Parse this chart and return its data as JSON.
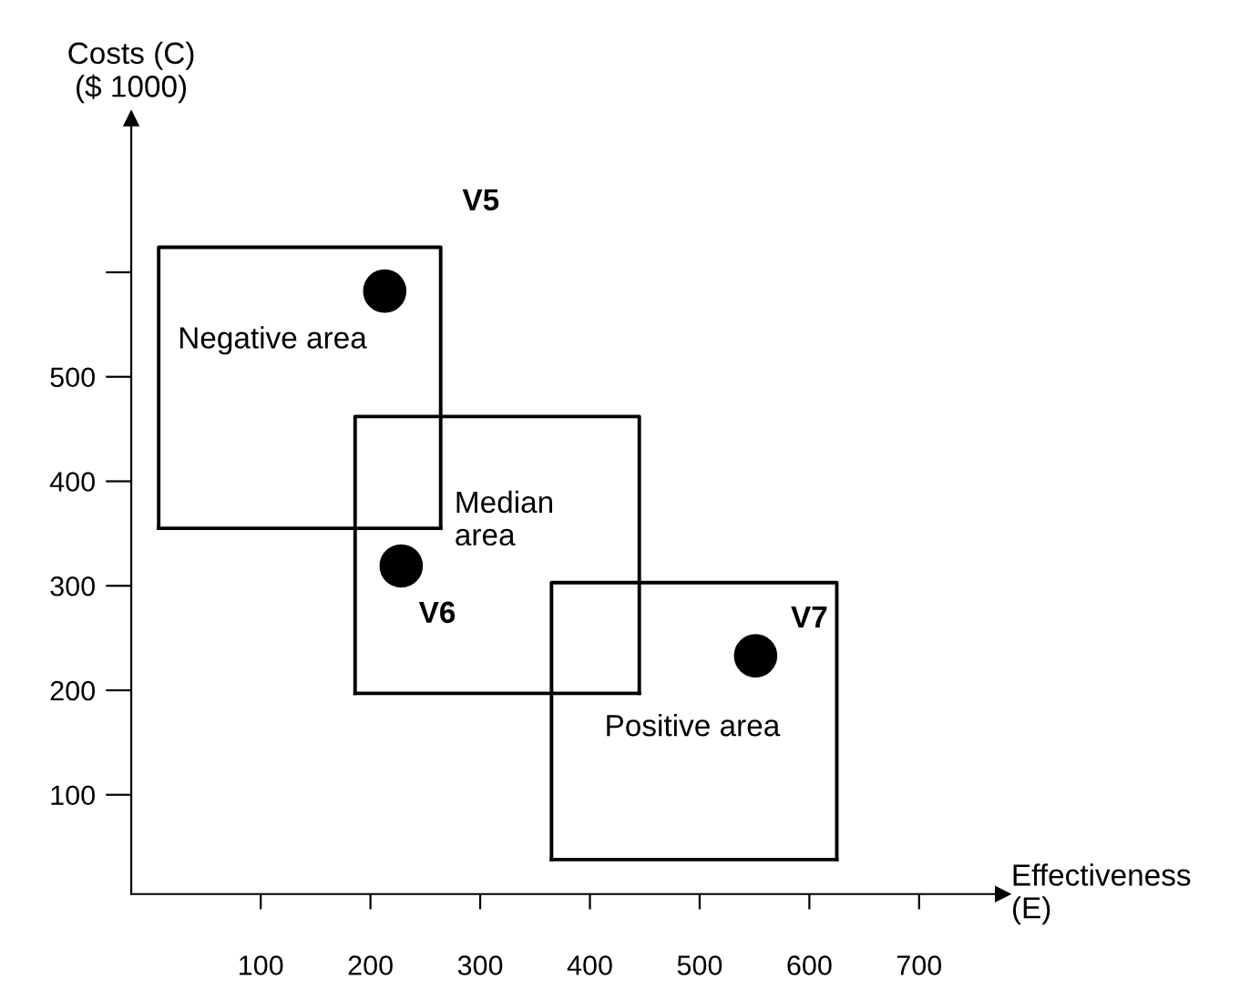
{
  "chart_data": {
    "type": "scatter",
    "xlabel": "Effectiveness\n(E)",
    "ylabel": "Costs (C)\n($ 1000)",
    "xlim": [
      -18,
      776
    ],
    "ylim": [
      5,
      747
    ],
    "xticks": [
      100,
      200,
      300,
      400,
      500,
      600,
      700
    ],
    "yticks": [
      100,
      200,
      300,
      400,
      500,
      {
        "value": 600,
        "label": null
      }
    ],
    "grid": false,
    "marker": "circle",
    "series": [
      {
        "color": "#000000",
        "x": [
          213,
          228,
          551
        ],
        "values": [
          582,
          319,
          233
        ]
      },
      {
        "type": "line",
        "color": "#000000",
        "line_style": "solid",
        "marker": "none",
        "x": [
          7,
          7,
          264,
          264
        ],
        "values": [
          355,
          624,
          624,
          355
        ]
      },
      {
        "type": "line",
        "color": "#000000",
        "line_style": "solid",
        "marker": "none",
        "x": [
          7,
          264
        ],
        "values": [
          355,
          355
        ]
      },
      {
        "type": "line",
        "color": "#000000",
        "line_style": "solid",
        "marker": "none",
        "x": [
          186,
          186,
          445,
          445
        ],
        "values": [
          197,
          462,
          462,
          197
        ]
      },
      {
        "type": "line",
        "color": "#000000",
        "line_style": "solid",
        "marker": "none",
        "x": [
          186,
          445
        ],
        "values": [
          197,
          197
        ]
      },
      {
        "type": "line",
        "color": "#000000",
        "line_style": "solid",
        "marker": "none",
        "x": [
          365,
          365,
          625,
          625
        ],
        "values": [
          38,
          303,
          303,
          38
        ]
      },
      {
        "type": "line",
        "color": "#000000",
        "line_style": "solid",
        "marker": "none",
        "x": [
          365,
          625
        ],
        "values": [
          38,
          38
        ]
      }
    ],
    "annotations": [
      "V5",
      "V6",
      "V7",
      "Negative area",
      "Median\narea",
      "Positive area"
    ]
  }
}
